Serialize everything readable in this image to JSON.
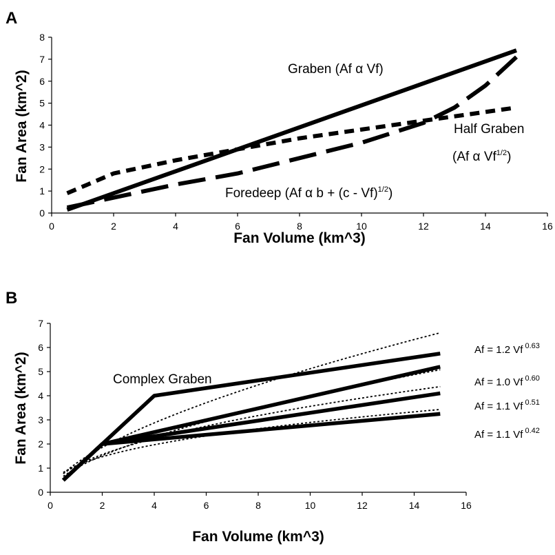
{
  "chart_data": [
    {
      "panel": "A",
      "type": "line",
      "xlabel": "Fan Volume (km^3)",
      "ylabel": "Fan Area (km^2)",
      "xlim": [
        0,
        16
      ],
      "ylim": [
        0,
        8
      ],
      "xticks": [
        "0",
        "2",
        "4",
        "6",
        "8",
        "10",
        "12",
        "14",
        "16"
      ],
      "yticks": [
        "0",
        "1",
        "2",
        "3",
        "4",
        "5",
        "6",
        "7",
        "8"
      ],
      "grid": false,
      "legend": "none",
      "series": [
        {
          "style": "solid",
          "points": [
            [
              0.5,
              0.15
            ],
            [
              15,
              7.4
            ]
          ]
        },
        {
          "style": "short-dash",
          "points": [
            [
              0.5,
              0.9
            ],
            [
              2,
              1.8
            ],
            [
              4,
              2.4
            ],
            [
              6,
              2.9
            ],
            [
              8,
              3.4
            ],
            [
              10,
              3.8
            ],
            [
              12,
              4.2
            ],
            [
              14,
              4.6
            ],
            [
              15,
              4.8
            ]
          ]
        },
        {
          "style": "long-dash",
          "points": [
            [
              0.5,
              0.25
            ],
            [
              2,
              0.7
            ],
            [
              4,
              1.3
            ],
            [
              6,
              1.8
            ],
            [
              8,
              2.5
            ],
            [
              10,
              3.2
            ],
            [
              12,
              4.1
            ],
            [
              13,
              4.8
            ],
            [
              14,
              5.8
            ],
            [
              15,
              7.1
            ]
          ]
        }
      ],
      "annotations": [
        {
          "text": "Graben (Af α Vf)"
        },
        {
          "text": "Half Graben",
          "line2": "(Af α Vf",
          "sup2": "1/2",
          "close2": ")"
        },
        {
          "text": "Foredeep (Af α b + (c - Vf)",
          "sup": "1/2",
          "close": ")"
        }
      ]
    },
    {
      "panel": "B",
      "type": "line",
      "xlabel": "Fan Volume (km^3)",
      "ylabel": "Fan Area (km^2)",
      "xlim": [
        0,
        16
      ],
      "ylim": [
        0,
        7
      ],
      "xticks": [
        "0",
        "2",
        "4",
        "6",
        "8",
        "10",
        "12",
        "14",
        "16"
      ],
      "yticks": [
        "0",
        "1",
        "2",
        "3",
        "4",
        "5",
        "6",
        "7"
      ],
      "grid": false,
      "legend": "none",
      "series": [
        {
          "style": "solid",
          "points": [
            [
              0.5,
              0.5
            ],
            [
              2,
              2.0
            ],
            [
              4,
              4.0
            ],
            [
              15,
              5.75
            ]
          ]
        },
        {
          "style": "solid",
          "points": [
            [
              0.5,
              0.5
            ],
            [
              2,
              2.0
            ],
            [
              15,
              5.2
            ]
          ]
        },
        {
          "style": "solid",
          "points": [
            [
              0.5,
              0.5
            ],
            [
              2,
              2.0
            ],
            [
              15,
              4.1
            ]
          ]
        },
        {
          "style": "solid",
          "points": [
            [
              0.5,
              0.5
            ],
            [
              2,
              2.0
            ],
            [
              15,
              3.25
            ]
          ]
        },
        {
          "style": "dotted",
          "equation": "Af = 1.2 Vf",
          "exponent": "0.63",
          "coef": 1.2,
          "exp": 0.63
        },
        {
          "style": "dotted",
          "equation": "Af = 1.0 Vf",
          "exponent": "0.60",
          "coef": 1.0,
          "exp": 0.6
        },
        {
          "style": "dotted",
          "equation": "Af = 1.1 Vf",
          "exponent": "0.51",
          "coef": 1.1,
          "exp": 0.51
        },
        {
          "style": "dotted",
          "equation": "Af = 1.1 Vf",
          "exponent": "0.42",
          "coef": 1.1,
          "exp": 0.42
        }
      ],
      "annotations": [
        {
          "text": "Complex Graben"
        }
      ]
    }
  ]
}
